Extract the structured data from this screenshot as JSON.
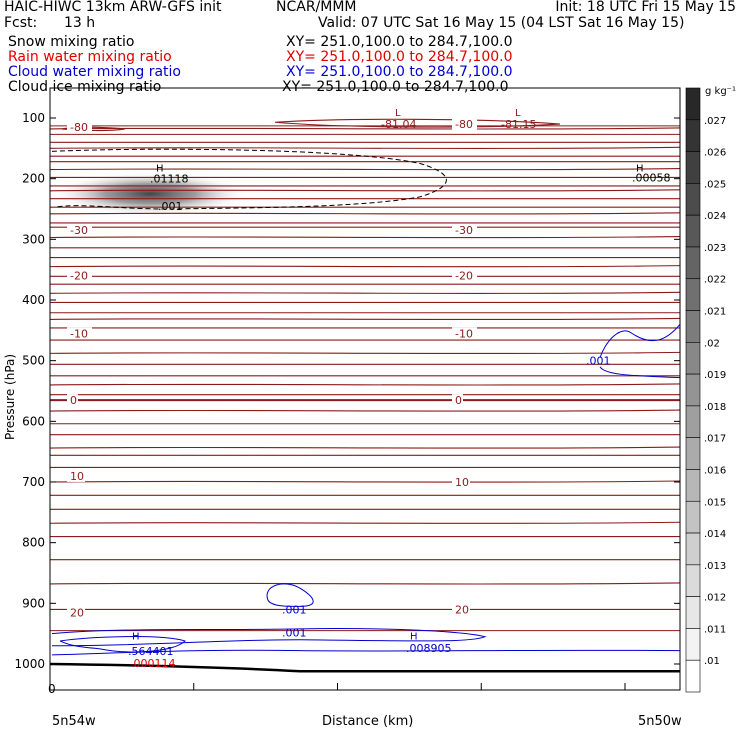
{
  "header": {
    "title_left": "HAIC-HIWC 13km ARW-GFS init",
    "org": "NCAR/MMM",
    "init": "Init: 18 UTC Fri 15 May 15",
    "fcst_label": "Fcst:",
    "fcst_value": "13 h",
    "valid": "Valid: 07 UTC Sat 16 May 15 (04 LST Sat 16 May 15)"
  },
  "fields": [
    {
      "name": "Snow mixing ratio",
      "xy": "XY= 251.0,100.0 to 284.7,100.0",
      "color": "#000000"
    },
    {
      "name": "Rain water mixing ratio",
      "xy": "XY= 251.0,100.0 to 284.7,100.0",
      "color": "#e00000"
    },
    {
      "name": "Cloud water mixing ratio",
      "xy": "XY= 251.0,100.0 to 284.7,100.0",
      "color": "#0000d0"
    },
    {
      "name": "Cloud ice mixing ratio",
      "xy": "XY= 251.0,100.0 to 284.7,100.0",
      "color": "#000000"
    }
  ],
  "chart_data": {
    "type": "contour-cross-section",
    "ylabel": "Pressure (hPa)",
    "xlabel": "Distance (km)",
    "yticks": [
      100,
      200,
      300,
      400,
      500,
      600,
      700,
      800,
      900,
      1000
    ],
    "ylim": [
      1000,
      50
    ],
    "x_origin_label": "0",
    "x_left_label": "5n54w",
    "x_right_label": "5n50w",
    "temperature_contours": {
      "color": "#8b1a1a",
      "interval": 5,
      "labels": [
        {
          "value": "-80",
          "p": 115,
          "pos": "left"
        },
        {
          "value": "-80",
          "p": 110,
          "pos": "mid"
        },
        {
          "value": "-30",
          "p": 285,
          "pos": "left"
        },
        {
          "value": "-30",
          "p": 285,
          "pos": "mid"
        },
        {
          "value": "-20",
          "p": 360,
          "pos": "left"
        },
        {
          "value": "-20",
          "p": 360,
          "pos": "mid"
        },
        {
          "value": "-10",
          "p": 455,
          "pos": "left"
        },
        {
          "value": "-10",
          "p": 455,
          "pos": "mid"
        },
        {
          "value": "0",
          "p": 565,
          "pos": "left"
        },
        {
          "value": "0",
          "p": 565,
          "pos": "mid"
        },
        {
          "value": "10",
          "p": 690,
          "pos": "left"
        },
        {
          "value": "10",
          "p": 700,
          "pos": "mid"
        },
        {
          "value": "20",
          "p": 915,
          "pos": "left"
        },
        {
          "value": "20",
          "p": 910,
          "pos": "mid"
        }
      ],
      "extrema": [
        {
          "type": "L",
          "value": "-81.04"
        },
        {
          "type": "L",
          "value": "-81.15"
        }
      ]
    },
    "snow": {
      "color": "#000000",
      "contour": ".001",
      "max_label": "H",
      "max_value": ".01118",
      "secondary_max": ".00058"
    },
    "cloud_water": {
      "color": "#0000d0",
      "contour": ".001",
      "maxima": [
        {
          "label": "H",
          "value": ".564401"
        },
        {
          "label": "H",
          "value": ".008905"
        }
      ]
    },
    "rain": {
      "color": "#e00000",
      "value": ".000114"
    },
    "colorbar": {
      "unit": "g kg⁻¹",
      "ticks": [
        ".01",
        ".011",
        ".012",
        ".013",
        ".014",
        ".015",
        ".016",
        ".017",
        ".018",
        ".019",
        ".02",
        ".021",
        ".022",
        ".023",
        ".024",
        ".025",
        ".026",
        ".027"
      ]
    }
  }
}
